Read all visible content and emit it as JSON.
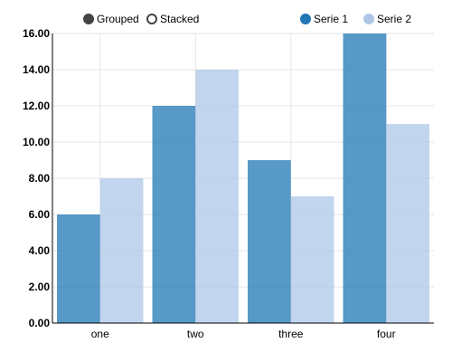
{
  "controls": {
    "grouped_label": "Grouped",
    "stacked_label": "Stacked",
    "selected": "Grouped"
  },
  "legend": [
    {
      "label": "Serie 1",
      "color": "#1f77b4"
    },
    {
      "label": "Serie 2",
      "color": "#aec7e8"
    }
  ],
  "chart_data": {
    "type": "bar",
    "mode": "grouped",
    "categories": [
      "one",
      "two",
      "three",
      "four"
    ],
    "series": [
      {
        "name": "Serie 1",
        "color": "#1f77b4",
        "values": [
          6,
          12,
          9,
          16
        ]
      },
      {
        "name": "Serie 2",
        "color": "#aec7e8",
        "values": [
          8,
          14,
          7,
          11
        ]
      }
    ],
    "yticks": [
      "0.00",
      "2.00",
      "4.00",
      "6.00",
      "8.00",
      "10.00",
      "12.00",
      "14.00",
      "16.00"
    ],
    "ylim": [
      0,
      16
    ],
    "grid": true,
    "legend_position": "top-right",
    "title": "",
    "xlabel": "",
    "ylabel": ""
  }
}
